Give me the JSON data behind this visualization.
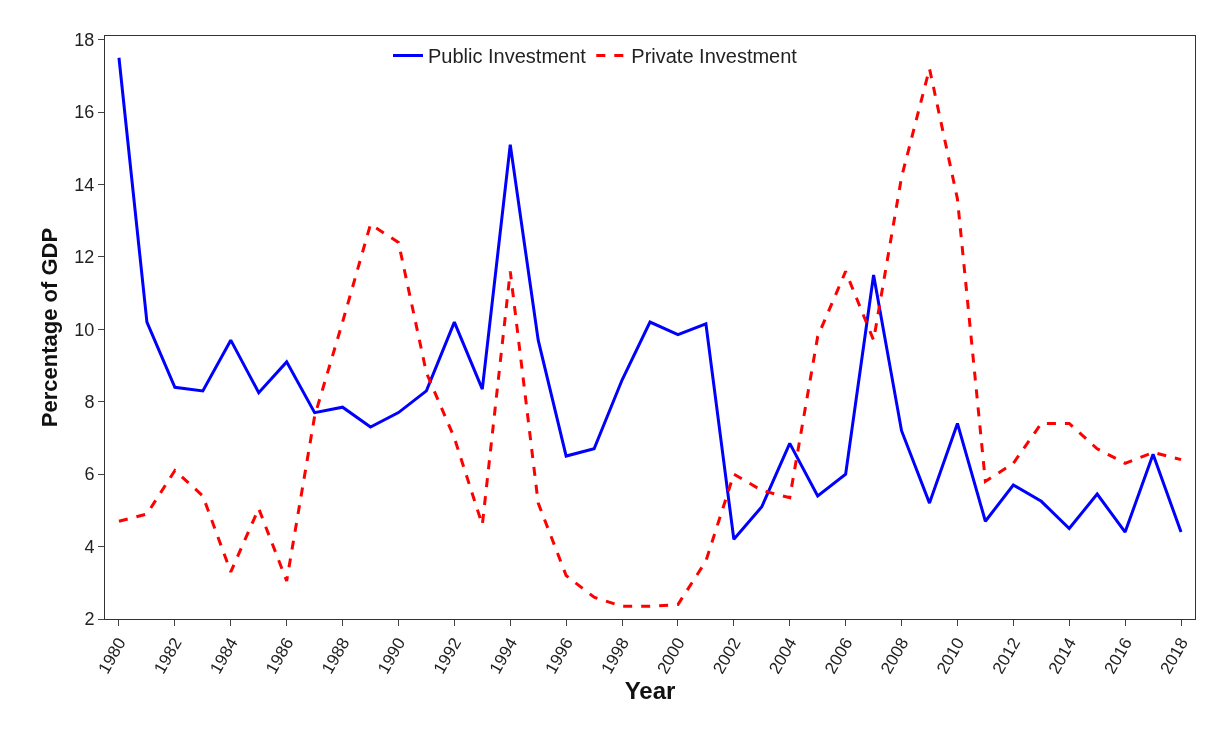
{
  "chart_data": {
    "type": "line",
    "xlabel": "Year",
    "ylabel": "Percentage of GDP",
    "x": [
      1980,
      1981,
      1982,
      1983,
      1984,
      1985,
      1986,
      1987,
      1988,
      1989,
      1990,
      1991,
      1992,
      1993,
      1994,
      1995,
      1996,
      1997,
      1998,
      1999,
      2000,
      2001,
      2002,
      2003,
      2004,
      2005,
      2006,
      2007,
      2008,
      2009,
      2010,
      2011,
      2012,
      2013,
      2014,
      2015,
      2016,
      2017,
      2018
    ],
    "series": [
      {
        "name": "Public Investment",
        "color": "#0000ff",
        "line_style": "solid",
        "values": [
          17.5,
          10.2,
          8.4,
          8.3,
          9.7,
          8.25,
          9.1,
          7.7,
          7.85,
          7.3,
          7.7,
          8.3,
          10.2,
          8.35,
          15.1,
          9.7,
          6.5,
          6.7,
          8.6,
          10.2,
          9.85,
          10.15,
          4.2,
          5.1,
          6.85,
          5.4,
          6.0,
          11.5,
          7.2,
          5.2,
          7.4,
          4.7,
          5.7,
          5.25,
          4.5,
          5.45,
          4.4,
          6.55,
          4.4
        ]
      },
      {
        "name": "Private Investment",
        "color": "#ff0000",
        "line_style": "dashed",
        "values": [
          4.7,
          4.9,
          6.1,
          5.4,
          3.3,
          5.05,
          3.05,
          7.6,
          10.2,
          12.9,
          12.4,
          8.8,
          7.0,
          4.6,
          11.6,
          5.2,
          3.2,
          2.6,
          2.35,
          2.35,
          2.4,
          3.6,
          6.0,
          5.55,
          5.35,
          9.8,
          11.6,
          9.7,
          14.2,
          17.2,
          13.6,
          5.8,
          6.3,
          7.4,
          7.4,
          6.7,
          6.3,
          6.6,
          6.4
        ]
      }
    ],
    "xlim": [
      1979.5,
      2018.5
    ],
    "xticks": [
      1980,
      1982,
      1984,
      1986,
      1988,
      1990,
      1992,
      1994,
      1996,
      1998,
      2000,
      2002,
      2004,
      2006,
      2008,
      2010,
      2012,
      2014,
      2016,
      2018
    ],
    "ylim": [
      2,
      18.1
    ],
    "yticks": [
      2,
      4,
      6,
      8,
      10,
      12,
      14,
      16,
      18
    ],
    "legend": "top",
    "marker": "none"
  }
}
